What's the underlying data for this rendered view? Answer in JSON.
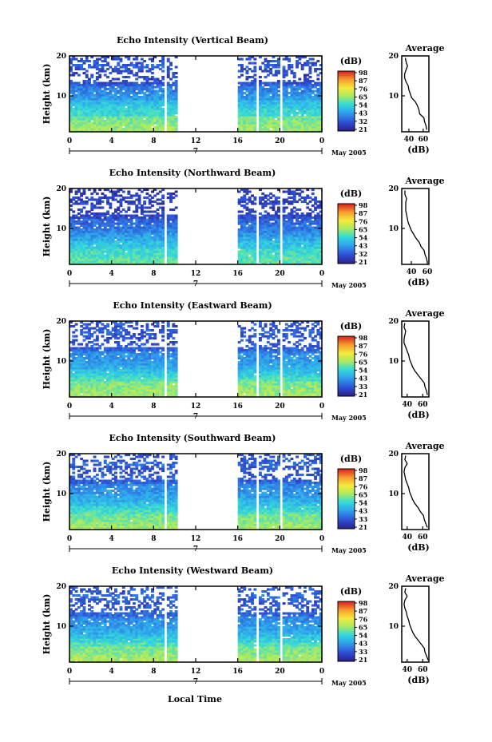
{
  "figure": {
    "xlabel": "Local Time",
    "date_label": "May 2005",
    "day_marker": "7",
    "cbar_unit": "(dB)",
    "ylabel": "Height (km)",
    "avg_title": "Average",
    "avg_xlabel": "(dB)"
  },
  "chart_data": [
    {
      "type": "heatmap",
      "title": "Echo Intensity (Vertical Beam)",
      "ylabel": "Height (km)",
      "x_ticks": [
        "0",
        "4",
        "8",
        "12",
        "16",
        "20",
        "0"
      ],
      "xlim": [
        0,
        24
      ],
      "y_ticks": [
        "20",
        "10"
      ],
      "ylim": [
        1,
        20
      ],
      "colorbar": {
        "label": "(dB)",
        "ticks": [
          "98",
          "87",
          "76",
          "65",
          "54",
          "43",
          "32",
          "21"
        ]
      },
      "data_gaps_hours": [
        [
          8.9,
          9.2
        ],
        [
          10.3,
          16.0
        ],
        [
          17.7,
          18.0
        ],
        [
          20.0,
          20.3
        ]
      ],
      "average_profile": {
        "title": "Average",
        "xlabel": "(dB)",
        "x_ticks": [
          "40",
          "60"
        ],
        "xlim": [
          30,
          68
        ],
        "y_ticks": [
          "20",
          "10"
        ],
        "ylim": [
          1,
          20
        ],
        "height_km": [
          1.5,
          2.5,
          3.5,
          4.5,
          5.5,
          6.5,
          7.5,
          8.5,
          9.5,
          10.5,
          11.5,
          12.5,
          13.5,
          14.5,
          15.5,
          16.5,
          17.5,
          18.5,
          19.5
        ],
        "values_db": [
          65,
          64,
          62,
          61,
          55,
          54,
          52,
          49,
          44,
          42,
          40,
          39,
          36,
          34,
          34,
          36,
          38,
          36,
          35
        ]
      }
    },
    {
      "type": "heatmap",
      "title": "Echo Intensity (Northward Beam)",
      "ylabel": "Height (km)",
      "x_ticks": [
        "0",
        "4",
        "8",
        "12",
        "16",
        "20",
        "0"
      ],
      "xlim": [
        0,
        24
      ],
      "y_ticks": [
        "20",
        "10"
      ],
      "ylim": [
        1,
        20
      ],
      "colorbar": {
        "label": "(dB)",
        "ticks": [
          "98",
          "87",
          "76",
          "65",
          "54",
          "43",
          "32",
          "21"
        ]
      },
      "data_gaps_hours": [
        [
          8.9,
          9.2
        ],
        [
          10.3,
          16.0
        ],
        [
          17.7,
          18.0
        ],
        [
          20.0,
          20.3
        ]
      ],
      "average_profile": {
        "title": "Average",
        "xlabel": "(dB)",
        "x_ticks": [
          "40",
          "60"
        ],
        "xlim": [
          28,
          62
        ],
        "y_ticks": [
          "20",
          "10"
        ],
        "ylim": [
          1,
          20
        ],
        "height_km": [
          1.5,
          2.5,
          3.5,
          4.5,
          5.5,
          6.5,
          7.5,
          8.5,
          9.5,
          10.5,
          11.5,
          12.5,
          13.5,
          14.5,
          15.5,
          16.5,
          17.5,
          18.5,
          19.5
        ],
        "values_db": [
          60,
          59,
          57,
          56,
          52,
          50,
          46,
          43,
          40,
          38,
          36,
          35,
          34,
          33,
          33,
          33,
          34,
          32,
          32
        ]
      }
    },
    {
      "type": "heatmap",
      "title": "Echo Intensity (Eastward Beam)",
      "ylabel": "Height (km)",
      "x_ticks": [
        "0",
        "4",
        "8",
        "12",
        "16",
        "20",
        "0"
      ],
      "xlim": [
        0,
        24
      ],
      "y_ticks": [
        "20",
        "10"
      ],
      "ylim": [
        1,
        20
      ],
      "colorbar": {
        "label": "(dB)",
        "ticks": [
          "98",
          "87",
          "76",
          "65",
          "54",
          "43",
          "33",
          "21"
        ]
      },
      "data_gaps_hours": [
        [
          8.9,
          9.2
        ],
        [
          10.3,
          16.0
        ],
        [
          17.7,
          18.0
        ],
        [
          20.0,
          20.3
        ]
      ],
      "average_profile": {
        "title": "Average",
        "xlabel": "(dB)",
        "x_ticks": [
          "40",
          "60"
        ],
        "xlim": [
          33,
          68
        ],
        "y_ticks": [
          "20",
          "10"
        ],
        "ylim": [
          1,
          20
        ],
        "height_km": [
          1.5,
          2.5,
          3.5,
          4.5,
          5.5,
          6.5,
          7.5,
          8.5,
          9.5,
          10.5,
          11.5,
          12.5,
          13.5,
          14.5,
          15.5,
          16.5,
          17.5,
          18.5,
          19.5
        ],
        "values_db": [
          66,
          65,
          63,
          62,
          58,
          54,
          50,
          47,
          45,
          43,
          42,
          40,
          38,
          36,
          36,
          37,
          38,
          36,
          37
        ]
      }
    },
    {
      "type": "heatmap",
      "title": "Echo Intensity (Southward Beam)",
      "ylabel": "Height (km)",
      "x_ticks": [
        "0",
        "4",
        "8",
        "12",
        "16",
        "20",
        "0"
      ],
      "xlim": [
        0,
        24
      ],
      "y_ticks": [
        "20",
        "10"
      ],
      "ylim": [
        1,
        20
      ],
      "colorbar": {
        "label": "(dB)",
        "ticks": [
          "98",
          "87",
          "76",
          "65",
          "54",
          "43",
          "33",
          "21"
        ]
      },
      "data_gaps_hours": [
        [
          8.9,
          9.2
        ],
        [
          10.3,
          16.0
        ],
        [
          17.7,
          18.0
        ],
        [
          20.0,
          20.3
        ]
      ],
      "average_profile": {
        "title": "Average",
        "xlabel": "(dB)",
        "x_ticks": [
          "40",
          "60"
        ],
        "xlim": [
          33,
          68
        ],
        "y_ticks": [
          "20",
          "10"
        ],
        "ylim": [
          1,
          20
        ],
        "height_km": [
          1.5,
          2.5,
          3.5,
          4.5,
          5.5,
          6.5,
          7.5,
          8.5,
          9.5,
          10.5,
          11.5,
          12.5,
          13.5,
          14.5,
          15.5,
          16.5,
          17.5,
          18.5,
          19.5
        ],
        "values_db": [
          66,
          64,
          62,
          61,
          57,
          54,
          50,
          47,
          45,
          43,
          42,
          40,
          38,
          37,
          36,
          37,
          40,
          37,
          38
        ]
      }
    },
    {
      "type": "heatmap",
      "title": "Echo Intensity (Westward Beam)",
      "ylabel": "Height (km)",
      "x_ticks": [
        "0",
        "4",
        "8",
        "12",
        "16",
        "20",
        "0"
      ],
      "xlim": [
        0,
        24
      ],
      "y_ticks": [
        "20",
        "10"
      ],
      "ylim": [
        1,
        20
      ],
      "colorbar": {
        "label": "(dB)",
        "ticks": [
          "98",
          "87",
          "76",
          "65",
          "54",
          "43",
          "33",
          "21"
        ]
      },
      "data_gaps_hours": [
        [
          8.9,
          9.2
        ],
        [
          10.3,
          16.0
        ],
        [
          17.7,
          18.0
        ],
        [
          20.0,
          20.3
        ]
      ],
      "average_profile": {
        "title": "Average",
        "xlabel": "(dB)",
        "x_ticks": [
          "40",
          "60"
        ],
        "xlim": [
          33,
          68
        ],
        "y_ticks": [
          "20",
          "10"
        ],
        "ylim": [
          1,
          20
        ],
        "height_km": [
          1.5,
          2.5,
          3.5,
          4.5,
          5.5,
          6.5,
          7.5,
          8.5,
          9.5,
          10.5,
          11.5,
          12.5,
          13.5,
          14.5,
          15.5,
          16.5,
          17.5,
          18.5,
          19.5
        ],
        "values_db": [
          67,
          65,
          63,
          62,
          58,
          54,
          50,
          47,
          45,
          43,
          42,
          40,
          39,
          37,
          36,
          37,
          40,
          37,
          38
        ]
      }
    }
  ]
}
